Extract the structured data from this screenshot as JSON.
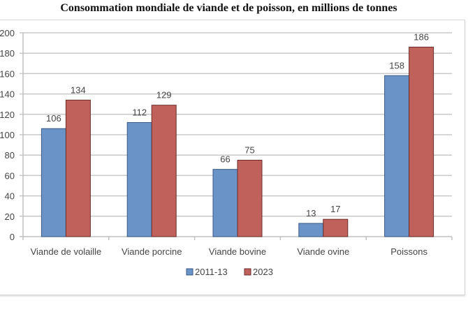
{
  "chart_data": {
    "type": "bar",
    "title": "Consommation mondiale de viande et de poisson, en millions de tonnes",
    "xlabel": "",
    "ylabel": "",
    "ylim": [
      0,
      200
    ],
    "yticks": [
      0,
      20,
      40,
      60,
      80,
      100,
      120,
      140,
      160,
      180,
      200
    ],
    "grid": true,
    "legend_position": "bottom",
    "categories": [
      "Viande de volaille",
      "Viande porcine",
      "Viande bovine",
      "Viande ovine",
      "Poissons"
    ],
    "series": [
      {
        "name": "2011-13",
        "values": [
          106,
          112,
          66,
          13,
          158
        ],
        "color": "#6a93c8",
        "border": "#3b5a85"
      },
      {
        "name": "2023",
        "values": [
          134,
          129,
          75,
          17,
          186
        ],
        "color": "#c0625b",
        "border": "#6a2d2a"
      }
    ]
  }
}
